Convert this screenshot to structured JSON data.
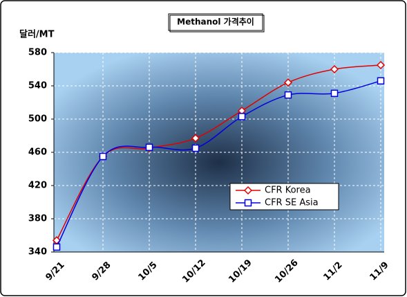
{
  "chart_data": {
    "type": "line",
    "title": "Methanol 가격추이",
    "y_label": "달러/MT",
    "categories": [
      "9/21",
      "9/28",
      "10/5",
      "10/12",
      "10/19",
      "10/26",
      "11/2",
      "11/9"
    ],
    "series": [
      {
        "name": "CFR Korea",
        "color": "#e00000",
        "marker": "diamond",
        "values": [
          354,
          455,
          465,
          477,
          510,
          544,
          560,
          565
        ]
      },
      {
        "name": "CFR SE Asia",
        "color": "#0000e0",
        "marker": "square",
        "values": [
          346,
          455,
          466,
          465,
          503,
          529,
          531,
          546
        ]
      }
    ],
    "ylim": [
      340,
      580
    ],
    "yticks": [
      340,
      380,
      420,
      460,
      500,
      540,
      580
    ],
    "grid": true,
    "legend": "right"
  }
}
